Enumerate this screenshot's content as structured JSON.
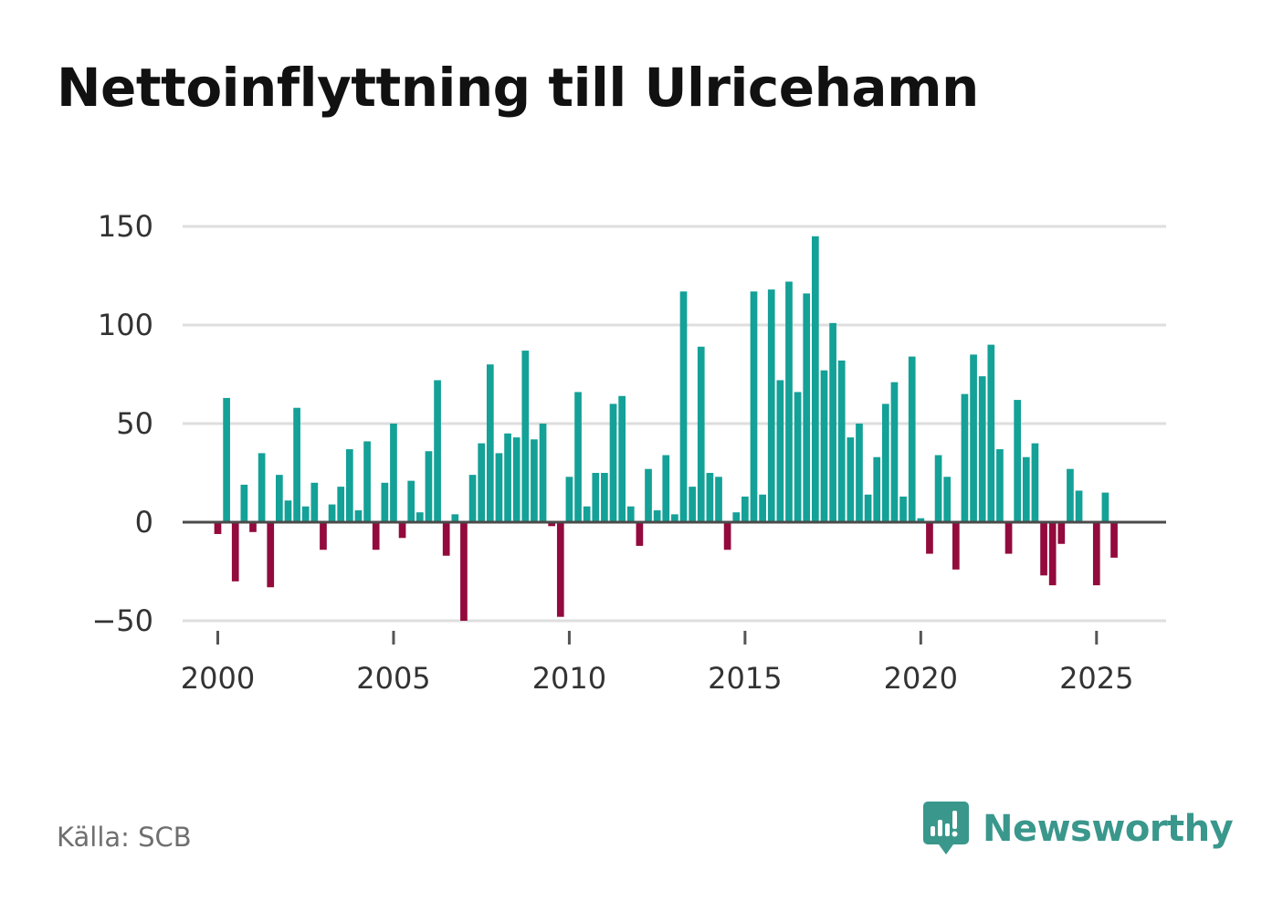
{
  "title": "Nettoinflyttning till Ulricehamn",
  "source": "Källa: SCB",
  "brand": {
    "name": "Newsworthy",
    "logo_icon": "bar-chart-speech-bubble-icon"
  },
  "colors": {
    "positive": "#14a197",
    "negative": "#930a3d",
    "grid": "#dedede",
    "zero_line": "#4a4a4a",
    "brand": "#3a978c"
  },
  "chart_data": {
    "type": "bar",
    "title": "Nettoinflyttning till Ulricehamn",
    "xlabel": "",
    "ylabel": "",
    "x_start": 2000.0,
    "x_step": 0.25,
    "xlim": [
      1999.0,
      2026.98
    ],
    "ylim": [
      -50,
      150
    ],
    "y_ticks": [
      150,
      100,
      50,
      0,
      -50
    ],
    "y_tick_labels": [
      "150",
      "100",
      "50",
      "0",
      "−50"
    ],
    "x_ticks": [
      2000,
      2005,
      2010,
      2015,
      2020,
      2025
    ],
    "x_tick_labels": [
      "2000",
      "2005",
      "2010",
      "2015",
      "2020",
      "2025"
    ],
    "grid": true,
    "legend": "none",
    "values": [
      -6,
      63,
      -30,
      19,
      -5,
      35,
      -33,
      24,
      11,
      58,
      8,
      20,
      -14,
      9,
      18,
      37,
      6,
      41,
      -14,
      20,
      50,
      -8,
      21,
      5,
      36,
      72,
      -17,
      4,
      -50,
      24,
      40,
      80,
      35,
      45,
      43,
      87,
      42,
      50,
      -2,
      -48,
      23,
      66,
      8,
      25,
      25,
      60,
      64,
      8,
      -12,
      27,
      6,
      34,
      4,
      117,
      18,
      89,
      25,
      23,
      -14,
      5,
      13,
      117,
      14,
      118,
      72,
      122,
      66,
      116,
      145,
      77,
      101,
      82,
      43,
      50,
      14,
      33,
      60,
      71,
      13,
      84,
      2,
      -16,
      34,
      23,
      -24,
      65,
      85,
      74,
      90,
      37,
      -16,
      62,
      33,
      40,
      -27,
      -32,
      -11,
      27,
      16,
      0,
      -32,
      15,
      -18
    ]
  }
}
